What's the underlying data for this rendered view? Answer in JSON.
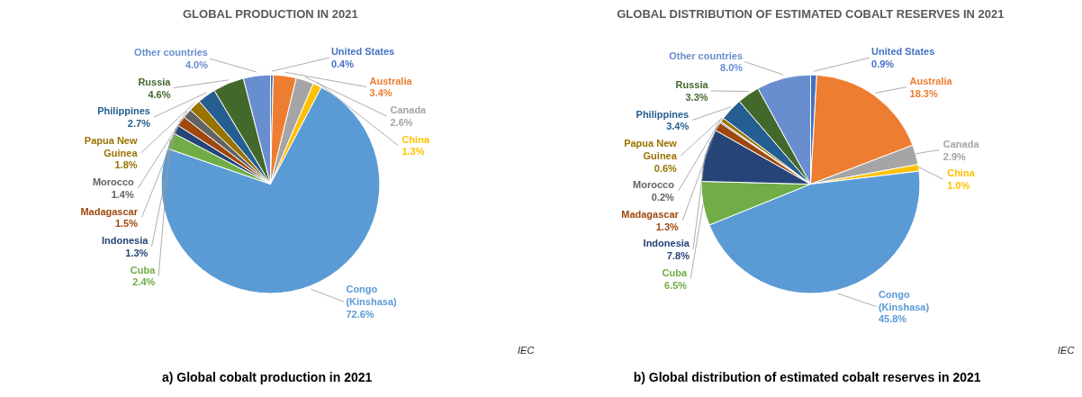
{
  "chart_data": [
    {
      "type": "pie",
      "title": "GLOBAL PRODUCTION IN 2021",
      "categories": [
        "United States",
        "Australia",
        "Canada",
        "China",
        "Congo (Kinshasa)",
        "Cuba",
        "Indonesia",
        "Madagascar",
        "Morocco",
        "Papua New Guinea",
        "Philippines",
        "Russia",
        "Other countries"
      ],
      "values": [
        0.4,
        3.4,
        2.6,
        1.3,
        72.6,
        2.4,
        1.3,
        1.5,
        1.4,
        1.8,
        2.7,
        4.6,
        4.0
      ],
      "value_labels": [
        "0.4%",
        "3.4%",
        "2.6%",
        "1.3%",
        "72.6%",
        "2.4%",
        "1.3%",
        "1.5%",
        "1.4%",
        "1.8%",
        "2.7%",
        "4.6%",
        "4.0%"
      ],
      "colors": [
        "#4472c4",
        "#ed7d31",
        "#a5a5a5",
        "#ffc000",
        "#5b9bd5",
        "#70ad47",
        "#264478",
        "#9e480e",
        "#636363",
        "#997300",
        "#255e91",
        "#43682b",
        "#698ed0"
      ],
      "annotations": [
        "IEC",
        "a)   Global cobalt production in 2021"
      ]
    },
    {
      "type": "pie",
      "title": "GLOBAL DISTRIBUTION OF ESTIMATED COBALT RESERVES IN 2021",
      "categories": [
        "United States",
        "Australia",
        "Canada",
        "China",
        "Congo (Kinshasa)",
        "Cuba",
        "Indonesia",
        "Madagascar",
        "Morocco",
        "Papua New Guinea",
        "Philippines",
        "Russia",
        "Other countries"
      ],
      "values": [
        0.9,
        18.3,
        2.9,
        1.0,
        45.8,
        6.5,
        7.8,
        1.3,
        0.2,
        0.6,
        3.4,
        3.3,
        8.0
      ],
      "value_labels": [
        "0.9%",
        "18.3%",
        "2.9%",
        "1.0%",
        "45.8%",
        "6.5%",
        "7.8%",
        "1.3%",
        "0.2%",
        "0.6%",
        "3.4%",
        "3.3%",
        "8.0%"
      ],
      "colors": [
        "#4472c4",
        "#ed7d31",
        "#a5a5a5",
        "#ffc000",
        "#5b9bd5",
        "#70ad47",
        "#264478",
        "#9e480e",
        "#636363",
        "#997300",
        "#255e91",
        "#43682b",
        "#698ed0"
      ],
      "annotations": [
        "IEC",
        "b)   Global distribution of estimated cobalt reserves in 2021"
      ]
    }
  ]
}
